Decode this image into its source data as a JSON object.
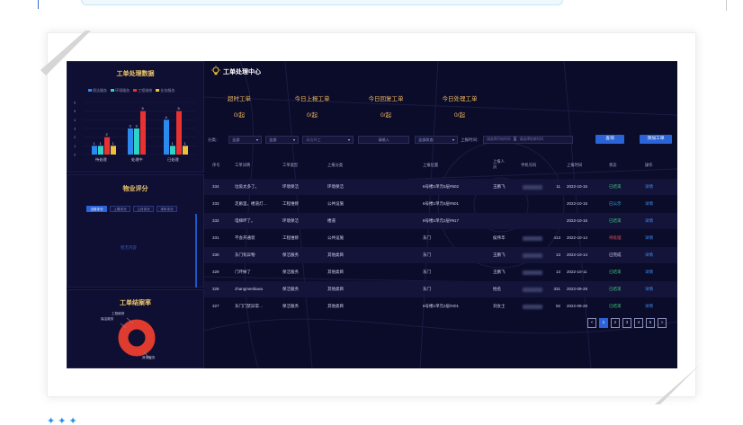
{
  "left_panel": {
    "order_data_title": "工单处理数据",
    "legend": [
      "保洁服务",
      "环境服务",
      "工程维修",
      "业务服务"
    ],
    "legend_colors": [
      "#2b8af0",
      "#2fd3c5",
      "#e83232",
      "#f0c03a"
    ],
    "score_title": "物业评分",
    "score_tabs": [
      "当前评分",
      "上周评分",
      "上月评分",
      "本年评分"
    ],
    "score_empty": "暂无内容",
    "rate_title": "工单结案率",
    "donut_labels": [
      "工程维修",
      "保洁服务",
      "其他服务"
    ]
  },
  "chart_data": {
    "type": "bar",
    "title": "工单处理数据",
    "categories": [
      "待处理",
      "处理中",
      "已处理"
    ],
    "series": [
      {
        "name": "保洁服务",
        "values": [
          1,
          3,
          4
        ]
      },
      {
        "name": "环境服务",
        "values": [
          1,
          3,
          1
        ]
      },
      {
        "name": "工程维修",
        "values": [
          2,
          5,
          5
        ]
      },
      {
        "name": "业务服务",
        "values": [
          1,
          0,
          1
        ]
      }
    ],
    "y_ticks": [
      "0",
      "1",
      "2",
      "3",
      "4",
      "5",
      "6"
    ],
    "ylim": [
      0,
      6
    ],
    "colors": [
      "#2b8af0",
      "#2fd3c5",
      "#e83232",
      "#f0c03a"
    ]
  },
  "rate_chart": {
    "type": "pie",
    "slices": [
      {
        "label": "工程维修",
        "value": 10
      },
      {
        "label": "保洁服务",
        "value": 10
      },
      {
        "label": "其他服务",
        "value": 80
      }
    ],
    "color": "#e03b2f"
  },
  "center": {
    "title": "工单处理中心",
    "stats": [
      {
        "label": "超时工单",
        "value": "0/起"
      },
      {
        "label": "今日上报工单",
        "value": "0/起"
      },
      {
        "label": "今日回复工单",
        "value": "0/起"
      },
      {
        "label": "今日处理工单",
        "value": "0/起"
      }
    ],
    "filters": {
      "category_label": "分类：",
      "select1": "全部",
      "select2": "全部",
      "select3_placeholder": "请选择工",
      "search_placeholder": "请输入",
      "status": "全部状态",
      "time_label": "上报时间：",
      "start_placeholder": "请选择开始时间",
      "range_sep": "至",
      "end_placeholder": "请选择结束时间",
      "query_button": "查询",
      "add_button": "添加工单"
    },
    "columns": [
      "序号",
      "工单详情",
      "工单类型",
      "上报分类",
      "上报位置",
      "上报人员",
      "手机号码",
      "上报时间",
      "状态",
      "操作"
    ],
    "rows": [
      [
        "334",
        "垃圾太多了。",
        "环境保洁",
        "环境保洁",
        "6号楼1单元5层#502",
        "王鹏飞",
        "11",
        "2022-10-15",
        "已结束",
        "详情"
      ],
      [
        "333",
        "走廊里，楼道灯…",
        "工程维修",
        "公共设施",
        "6号楼1单元5层#501",
        "",
        "",
        "2022-10-15",
        "已公示",
        "详情"
      ],
      [
        "332",
        "电梯坏了。",
        "环境保洁",
        "楼道",
        "8号楼1单元2层#917",
        "",
        "",
        "2022-10-15",
        "已结束",
        "详情"
      ],
      [
        "331",
        "不会开通装",
        "工程维修",
        "公共设施",
        "东门",
        "侯伟华",
        "413",
        "2022-10-14",
        "待处理",
        "详情"
      ],
      [
        "330",
        "东门有异物",
        "保洁服务",
        "其他类目",
        "东门",
        "王鹏飞",
        "13",
        "2022-10-14",
        "已完成",
        "详情"
      ],
      [
        "329",
        "门坏掉了",
        "保洁服务",
        "其他类目",
        "东门",
        "王鹏飞",
        "13",
        "2022-10-11",
        "已结束",
        "详情"
      ],
      [
        "328",
        "zhangmenliuwu",
        "保洁服务",
        "其他类目",
        "东门",
        "姓名",
        "331",
        "2022-09-28",
        "已结束",
        "详情"
      ],
      [
        "327",
        "东门门禁异常…",
        "保洁服务",
        "其他类目",
        "6号楼1单元2层#201",
        "刘女士",
        "92",
        "2022-09-28",
        "已结束",
        "详情"
      ]
    ],
    "status_colors": {
      "已结束": "#35c979",
      "已公示": "#2fb8e8",
      "待处理": "#ef4b4b",
      "已完成": "#d4d6ef"
    },
    "pagination": [
      "<",
      "1",
      "2",
      "3",
      "4",
      "5",
      ">"
    ],
    "current_page": "1"
  }
}
